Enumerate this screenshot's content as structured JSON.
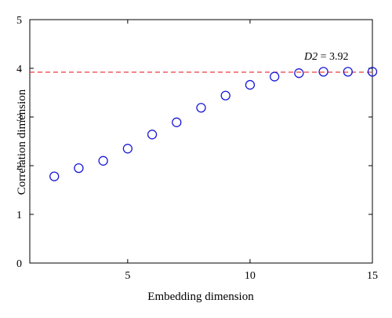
{
  "chart_data": {
    "type": "scatter",
    "xlabel": "Embedding dimension",
    "ylabel": "Correlation dimension",
    "xlim": [
      1,
      15
    ],
    "ylim": [
      0,
      5
    ],
    "x_ticks": [
      5,
      10,
      15
    ],
    "y_ticks": [
      0,
      1,
      2,
      3,
      4,
      5
    ],
    "grid": false,
    "series": [
      {
        "marker": "open-circle",
        "color": "#1a1ad6",
        "x": [
          2,
          3,
          4,
          5,
          6,
          7,
          8,
          9,
          10,
          11,
          12,
          13,
          14,
          15
        ],
        "y": [
          1.78,
          1.95,
          2.1,
          2.35,
          2.64,
          2.89,
          3.19,
          3.44,
          3.66,
          3.83,
          3.9,
          3.93,
          3.93,
          3.93
        ]
      }
    ],
    "reference_line": {
      "y": 3.92,
      "style": "dashed",
      "color": "#e8242e"
    },
    "annotation": {
      "prefix": "D2",
      "text": " = 3.92"
    }
  }
}
